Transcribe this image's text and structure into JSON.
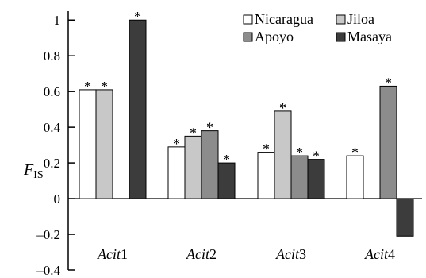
{
  "chart_data": {
    "type": "bar",
    "categories": [
      {
        "stem": "Acit",
        "num": "1"
      },
      {
        "stem": "Acit",
        "num": "2"
      },
      {
        "stem": "Acit",
        "num": "3"
      },
      {
        "stem": "Acit",
        "num": "4"
      }
    ],
    "series": [
      {
        "name": "Nicaragua",
        "color": "#ffffff",
        "values": [
          0.61,
          0.29,
          0.26,
          0.24
        ],
        "labels": [
          "*",
          "*",
          "*",
          "*"
        ]
      },
      {
        "name": "Jiloa",
        "color": "#c8c8c8",
        "values": [
          0.61,
          0.35,
          0.49,
          null
        ],
        "labels": [
          "*",
          "*",
          "*",
          ""
        ]
      },
      {
        "name": "Apoyo",
        "color": "#8c8c8c",
        "values": [
          null,
          0.38,
          0.24,
          0.63
        ],
        "labels": [
          "",
          "*",
          "*",
          "*"
        ]
      },
      {
        "name": "Masaya",
        "color": "#3c3c3c",
        "values": [
          1.0,
          0.2,
          0.22,
          -0.21
        ],
        "labels": [
          "*",
          "*",
          "*",
          ""
        ]
      }
    ],
    "ylabel": {
      "main": "F",
      "sub": "IS"
    },
    "ylim": [
      -0.4,
      1.05
    ],
    "yticks": [
      -0.4,
      -0.2,
      0,
      0.2,
      0.4,
      0.6,
      0.8,
      1
    ],
    "ytick_labels": [
      "–0.4",
      "–0.2",
      "0",
      "0.2",
      "0.4",
      "0.6",
      "0.8",
      "1"
    ],
    "legend_position": "top-right",
    "grid": false
  }
}
